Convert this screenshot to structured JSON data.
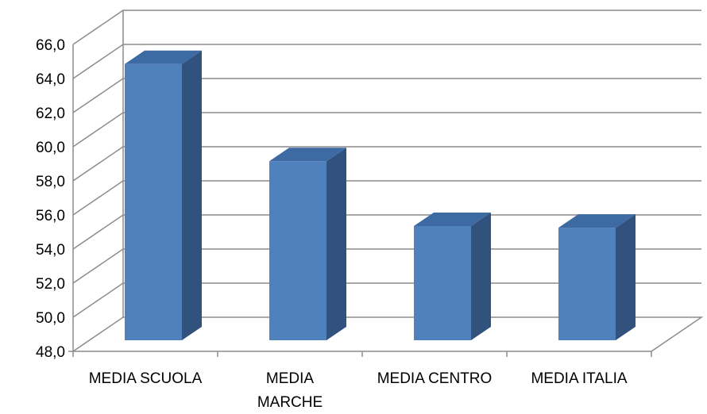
{
  "chart_data": {
    "type": "bar",
    "style": "3d-column",
    "categories": [
      "MEDIA SCUOLA",
      "MEDIA MARCHE",
      "MEDIA CENTRO",
      "MEDIA ITALIA"
    ],
    "category_lines": [
      [
        "MEDIA SCUOLA"
      ],
      [
        "MEDIA",
        "MARCHE"
      ],
      [
        "MEDIA CENTRO"
      ],
      [
        "MEDIA ITALIA"
      ]
    ],
    "values": [
      64.2,
      58.5,
      54.7,
      54.6
    ],
    "ylim": [
      48.0,
      66.0
    ],
    "yticks": [
      "48,0",
      "50,0",
      "52,0",
      "54,0",
      "56,0",
      "58,0",
      "60,0",
      "62,0",
      "64,0",
      "66,0"
    ],
    "grid": true,
    "legend": "none",
    "colors": {
      "bar_front": "#4F81BD",
      "bar_side": "#30527D",
      "bar_top": "#3E6AA4",
      "grid": "#8C8C8C"
    }
  }
}
